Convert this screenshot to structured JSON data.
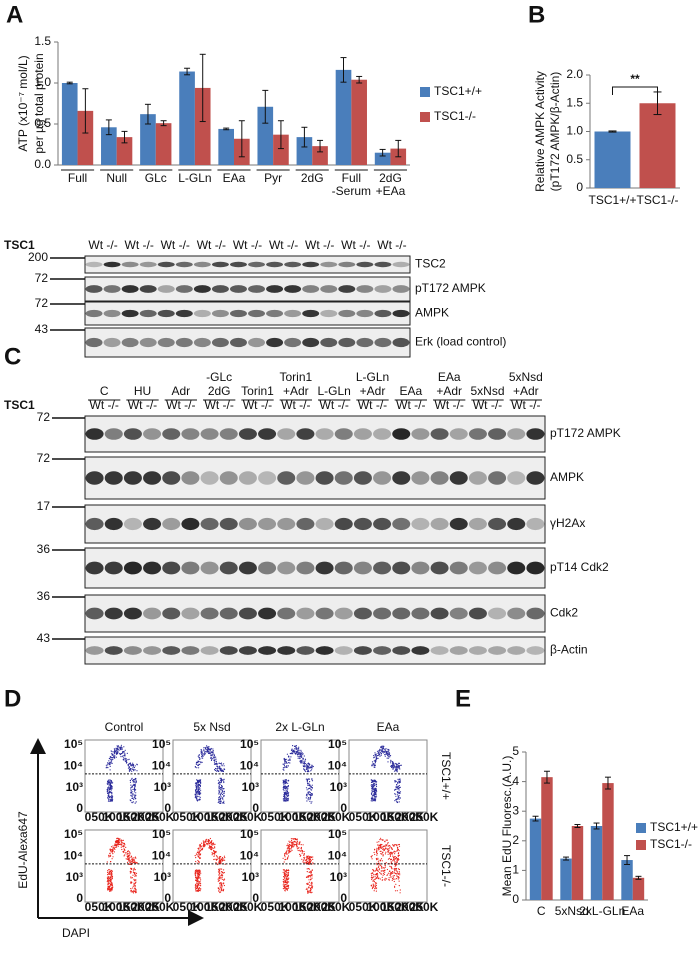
{
  "panels": [
    "A",
    "B",
    "C",
    "D",
    "E"
  ],
  "chart_data": [
    {
      "type": "bar",
      "y_label": [
        "ATP (x10⁻⁷ mol/L)",
        "per µg total protein"
      ],
      "categories": [
        "Full",
        "Null",
        "GLc",
        "L-GLn",
        "EAa",
        "Pyr",
        "2dG",
        [
          "Full",
          "-Serum"
        ],
        [
          "2dG",
          "+EAa"
        ]
      ],
      "series": [
        {
          "name": "TSC1+/+",
          "color": "#4a7ebb",
          "values": [
            1.0,
            0.46,
            0.62,
            1.14,
            0.44,
            0.71,
            0.34,
            1.16,
            0.15
          ],
          "errors": [
            0.01,
            0.09,
            0.12,
            0.04,
            0.01,
            0.2,
            0.12,
            0.15,
            0.04
          ]
        },
        {
          "name": "TSC1-/-",
          "color": "#c0504d",
          "values": [
            0.66,
            0.34,
            0.51,
            0.94,
            0.32,
            0.37,
            0.23,
            1.04,
            0.2
          ],
          "errors": [
            0.27,
            0.07,
            0.03,
            0.41,
            0.22,
            0.17,
            0.07,
            0.04,
            0.1
          ]
        }
      ],
      "ylim": [
        0,
        1.5
      ],
      "yticks": [
        {
          "value": 0,
          "label": "0.0"
        },
        {
          "value": 0.5,
          "label": "0.5"
        },
        {
          "value": 1,
          "label": "1.0"
        },
        {
          "value": 1.5,
          "label": "1.5"
        }
      ],
      "legend": "right"
    },
    {
      "type": "bar",
      "y_label": [
        "Relative AMPK Activity",
        "(pT172 AMPK/β-Actin)"
      ],
      "categories": [
        "TSC1+/+",
        "TSC1-/-"
      ],
      "values": [
        1.0,
        1.5
      ],
      "errors": [
        0.01,
        0.2
      ],
      "colors": [
        "#4a7ebb",
        "#c0504d"
      ],
      "ylim": [
        0,
        2
      ],
      "yticks": [
        0,
        0.5,
        {
          "value": 1,
          "label": "1.0"
        },
        1.5,
        {
          "value": 2,
          "label": "2.0"
        }
      ],
      "annotations": [
        "**"
      ]
    },
    {
      "type": "bar",
      "y_label": [
        "Mean EdU Fluoresc.(A.U.)"
      ],
      "categories": [
        "C",
        "5xNsd",
        "2xL-GLn",
        "EAa"
      ],
      "series": [
        {
          "name": "TSC1+/+",
          "color": "#4a7ebb",
          "values": [
            2.75,
            1.4,
            2.5,
            1.35
          ],
          "errors": [
            0.08,
            0.05,
            0.1,
            0.15
          ]
        },
        {
          "name": "TSC1-/-",
          "color": "#c0504d",
          "values": [
            4.15,
            2.5,
            3.95,
            0.75
          ],
          "errors": [
            0.2,
            0.05,
            0.2,
            0.05
          ]
        }
      ],
      "ylim": [
        0,
        5
      ],
      "yticks": [
        0,
        1,
        2,
        3,
        4,
        5
      ],
      "legend": "right"
    }
  ],
  "blots_a": {
    "row_label": "TSC1",
    "lanes": [
      "Wt -/-",
      "Wt -/-",
      "Wt -/-",
      "Wt -/-",
      "Wt -/-",
      "Wt -/-",
      "Wt -/-",
      "Wt -/-",
      "Wt -/-"
    ],
    "bands": [
      {
        "label": "TSC2",
        "mw": 200
      },
      {
        "label": "pT172 AMPK",
        "mw": 72
      },
      {
        "label": "AMPK",
        "mw": 72
      },
      {
        "label": "Erk (load control)",
        "mw": 43
      }
    ]
  },
  "blots_c": {
    "groups": [
      [
        "C"
      ],
      [
        "HU"
      ],
      [
        "Adr"
      ],
      [
        "-GLc",
        "2dG"
      ],
      [
        "Torin1"
      ],
      [
        "Torin1",
        "+Adr"
      ],
      [
        "L-GLn"
      ],
      [
        "L-GLn",
        "+Adr"
      ],
      [
        "EAa"
      ],
      [
        "EAa",
        "+Adr"
      ],
      [
        "5xNsd"
      ],
      [
        "5xNsd",
        "+Adr"
      ]
    ],
    "row_label": "TSC1",
    "lanes": [
      "Wt -/-",
      "Wt -/-",
      "Wt -/-",
      "Wt -/-",
      "Wt -/-",
      "Wt -/-",
      "Wt -/-",
      "Wt -/-",
      "Wt -/-",
      "Wt -/-",
      "Wt -/-",
      "Wt -/-"
    ],
    "bands": [
      {
        "label": "pT172 AMPK",
        "mw": 72
      },
      {
        "label": "AMPK",
        "mw": 72
      },
      {
        "label": "γH2Ax",
        "mw": 17
      },
      {
        "label": "pT14 Cdk2",
        "mw": 36
      },
      {
        "label": "Cdk2",
        "mw": 36
      },
      {
        "label": "β-Actin",
        "mw": 43
      }
    ]
  },
  "flow": {
    "columns": [
      "Control",
      "5x Nsd",
      "2x L-GLn",
      "EAa"
    ],
    "rows": [
      "TSC1+/+",
      "TSC1-/-"
    ],
    "xticks": [
      "0",
      "50K",
      "100K",
      "150K",
      "200K",
      "250K"
    ],
    "yticks": [
      "0",
      "10³",
      "10⁴",
      "10⁵"
    ],
    "y_label": "EdU-Alexa647",
    "x_label": "DAPI"
  }
}
